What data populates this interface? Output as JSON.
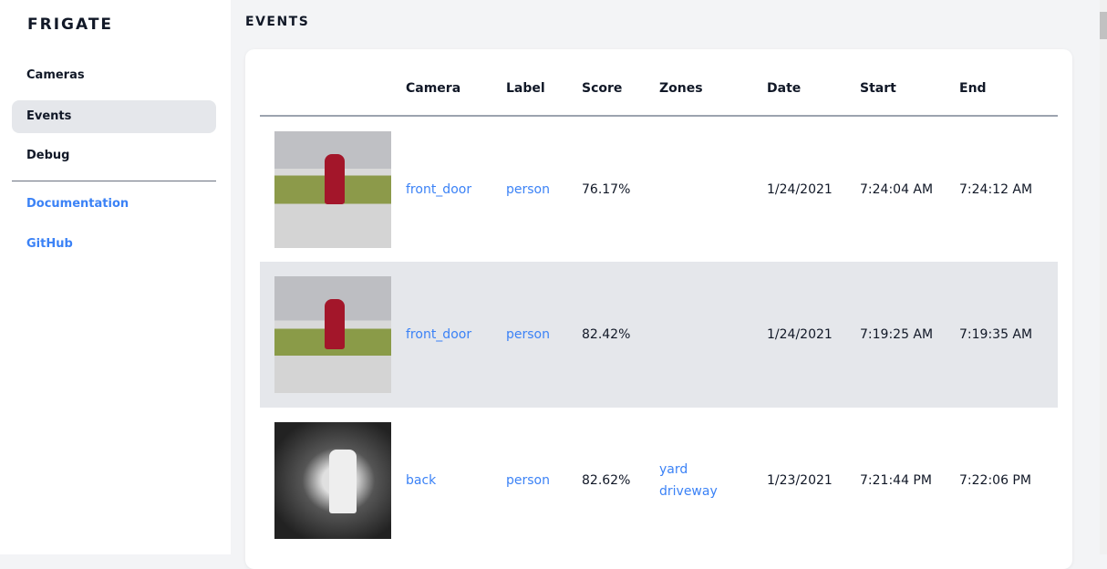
{
  "brand": "FRIGATE",
  "nav": {
    "cameras": "Cameras",
    "events": "Events",
    "debug": "Debug",
    "documentation": "Documentation",
    "github": "GitHub"
  },
  "page_title": "EVENTS",
  "table": {
    "headers": [
      "",
      "Camera",
      "Label",
      "Score",
      "Zones",
      "Date",
      "Start",
      "End"
    ],
    "rows": [
      {
        "camera": "front_door",
        "label": "person",
        "score": "76.17%",
        "zones": [],
        "date": "1/24/2021",
        "start": "7:24:04 AM",
        "end": "7:24:12 AM"
      },
      {
        "camera": "front_door",
        "label": "person",
        "score": "82.42%",
        "zones": [],
        "date": "1/24/2021",
        "start": "7:19:25 AM",
        "end": "7:19:35 AM"
      },
      {
        "camera": "back",
        "label": "person",
        "score": "82.62%",
        "zones": [
          "yard",
          "driveway"
        ],
        "date": "1/23/2021",
        "start": "7:21:44 PM",
        "end": "7:22:06 PM"
      }
    ]
  },
  "colors": {
    "accent": "#3b82f6",
    "active_bg": "#e5e7eb"
  }
}
